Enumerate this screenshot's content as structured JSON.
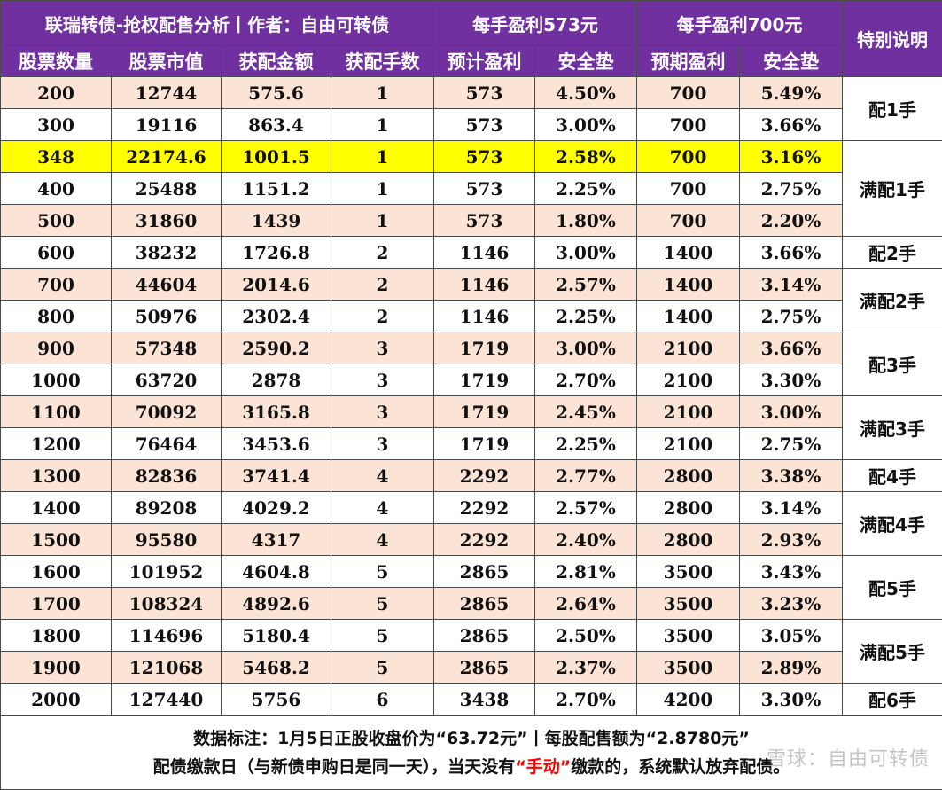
{
  "header": {
    "title": "联瑞转债-抢权配售分析丨作者：自由可转债",
    "group_573": "每手盈利573元",
    "group_700": "每手盈利700元",
    "special": "特别说明",
    "columns": [
      "股票数量",
      "股票市值",
      "获配金额",
      "获配手数",
      "预计盈利",
      "安全垫",
      "预期盈利",
      "安全垫"
    ]
  },
  "rows": [
    [
      "200",
      "12744",
      "575.6",
      "1",
      "573",
      "4.50%",
      "700",
      "5.49%"
    ],
    [
      "300",
      "19116",
      "863.4",
      "1",
      "573",
      "3.00%",
      "700",
      "3.66%"
    ],
    [
      "348",
      "22174.6",
      "1001.5",
      "1",
      "573",
      "2.58%",
      "700",
      "3.16%"
    ],
    [
      "400",
      "25488",
      "1151.2",
      "1",
      "573",
      "2.25%",
      "700",
      "2.75%"
    ],
    [
      "500",
      "31860",
      "1439",
      "1",
      "573",
      "1.80%",
      "700",
      "2.20%"
    ],
    [
      "600",
      "38232",
      "1726.8",
      "2",
      "1146",
      "3.00%",
      "1400",
      "3.66%"
    ],
    [
      "700",
      "44604",
      "2014.6",
      "2",
      "1146",
      "2.57%",
      "1400",
      "3.14%"
    ],
    [
      "800",
      "50976",
      "2302.4",
      "2",
      "1146",
      "2.25%",
      "1400",
      "2.75%"
    ],
    [
      "900",
      "57348",
      "2590.2",
      "3",
      "1719",
      "3.00%",
      "2100",
      "3.66%"
    ],
    [
      "1000",
      "63720",
      "2878",
      "3",
      "1719",
      "2.70%",
      "2100",
      "3.30%"
    ],
    [
      "1100",
      "70092",
      "3165.8",
      "3",
      "1719",
      "2.45%",
      "2100",
      "3.00%"
    ],
    [
      "1200",
      "76464",
      "3453.6",
      "3",
      "1719",
      "2.25%",
      "2100",
      "2.75%"
    ],
    [
      "1300",
      "82836",
      "3741.4",
      "4",
      "2292",
      "2.77%",
      "2800",
      "3.38%"
    ],
    [
      "1400",
      "89208",
      "4029.2",
      "4",
      "2292",
      "2.57%",
      "2800",
      "3.14%"
    ],
    [
      "1500",
      "95580",
      "4317",
      "4",
      "2292",
      "2.40%",
      "2800",
      "2.93%"
    ],
    [
      "1600",
      "101952",
      "4604.8",
      "5",
      "2865",
      "2.81%",
      "3500",
      "3.43%"
    ],
    [
      "1700",
      "108324",
      "4892.6",
      "5",
      "2865",
      "2.64%",
      "3500",
      "3.23%"
    ],
    [
      "1800",
      "114696",
      "5180.4",
      "5",
      "2865",
      "2.50%",
      "3500",
      "3.05%"
    ],
    [
      "1900",
      "121068",
      "5468.2",
      "5",
      "2865",
      "2.37%",
      "3500",
      "2.89%"
    ],
    [
      "2000",
      "127440",
      "5756",
      "6",
      "3438",
      "2.70%",
      "4200",
      "3.30%"
    ]
  ],
  "notes": [
    {
      "label": "配1手",
      "rows": 2
    },
    {
      "label": "满配1手",
      "rows": 3
    },
    {
      "label": "配2手",
      "rows": 1
    },
    {
      "label": "满配2手",
      "rows": 2
    },
    {
      "label": "配3手",
      "rows": 2
    },
    {
      "label": "满配3手",
      "rows": 2
    },
    {
      "label": "配4手",
      "rows": 1
    },
    {
      "label": "满配4手",
      "rows": 2
    },
    {
      "label": "配5手",
      "rows": 2
    },
    {
      "label": "满配5手",
      "rows": 2
    },
    {
      "label": "配6手",
      "rows": 1
    }
  ],
  "highlight_row": 2,
  "colors": {
    "header_bg": "#7030a0",
    "stripe": "#fbe4d5",
    "highlight": "#ffff00",
    "emphasis": "#ff0000"
  },
  "footer": {
    "line1": "数据标注：1月5日正股收盘价为“63.72元”丨每股配售额为“2.8780元”",
    "line2_pre": "配债缴款日（与新债申购日是同一天），当天没有",
    "line2_red": "“手动”",
    "line2_post": "缴款的，系统默认放弃配债。"
  },
  "watermark": "雪球：自由可转债"
}
